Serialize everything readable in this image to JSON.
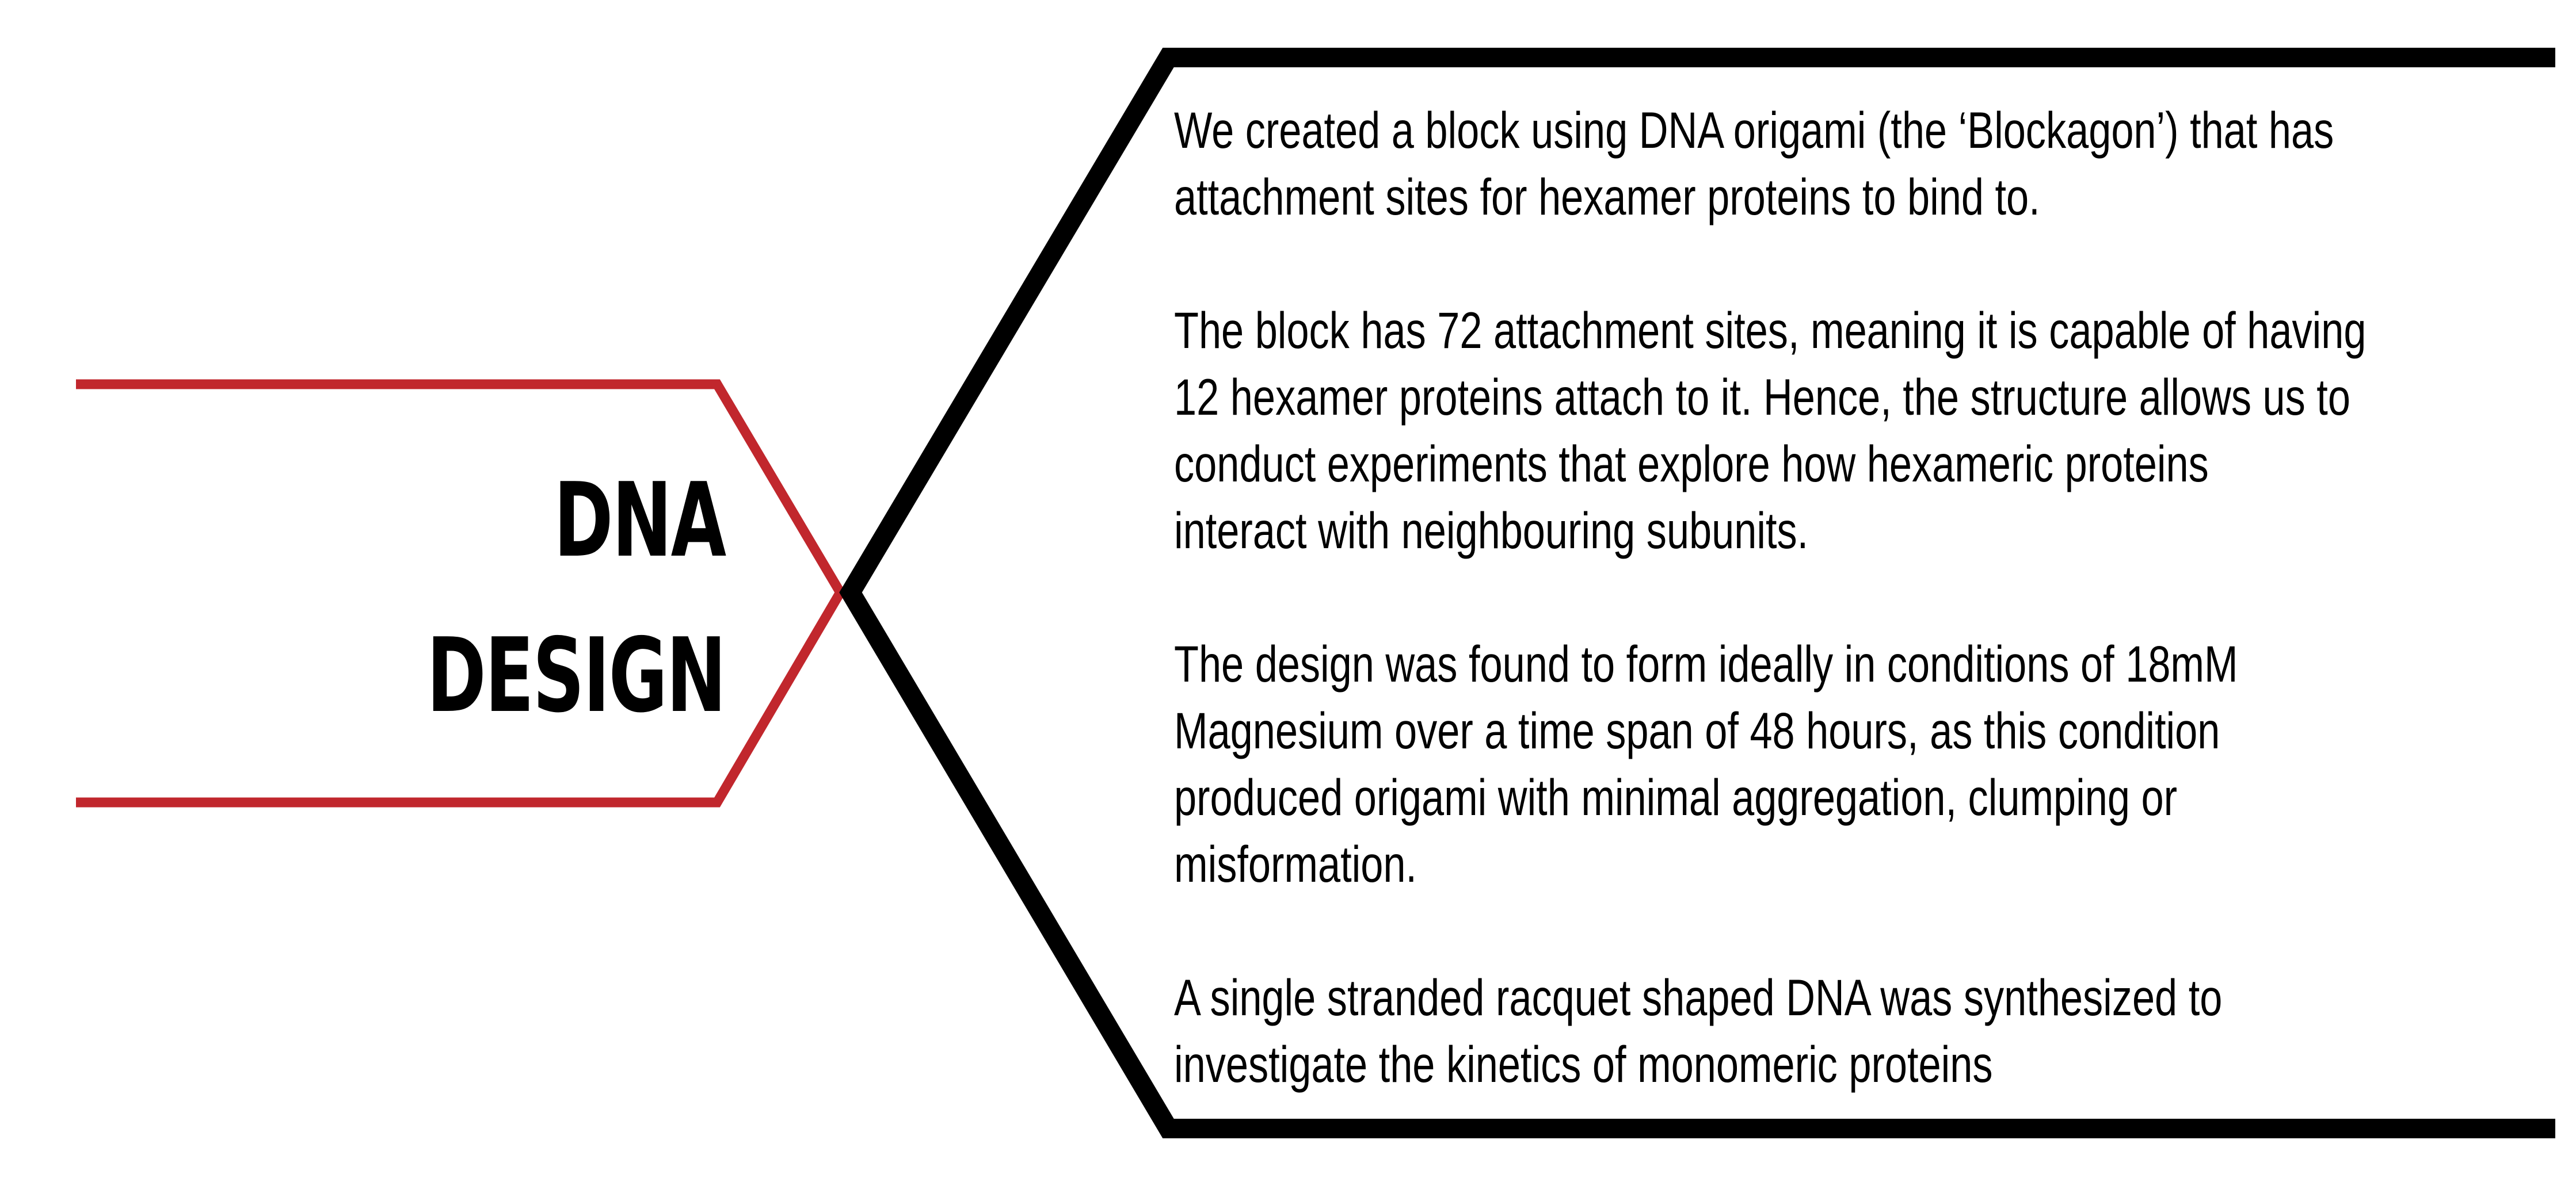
{
  "colors": {
    "red_outline": "#c1272d",
    "black_outline": "#000000",
    "text": "#000000",
    "background": "#ffffff"
  },
  "heading": {
    "line1": "DNA",
    "line2": "DESIGN"
  },
  "paragraphs": [
    "We created a block using DNA origami (the ‘Blockagon’) that has\nattachment sites for hexamer proteins to bind to.",
    "The block has 72 attachment sites, meaning it is capable of having\n12 hexamer proteins attach to it. Hence, the structure allows us to\nconduct experiments that explore how hexameric proteins\ninteract with neighbouring subunits.",
    "The design was found to form ideally in conditions of 18mM\nMagnesium over a time span of 48 hours, as this condition\nproduced origami with minimal aggregation, clumping or\nmisformation.",
    "A single stranded racquet shaped DNA was synthesized to\ninvestigate the kinetics of monomeric proteins"
  ]
}
